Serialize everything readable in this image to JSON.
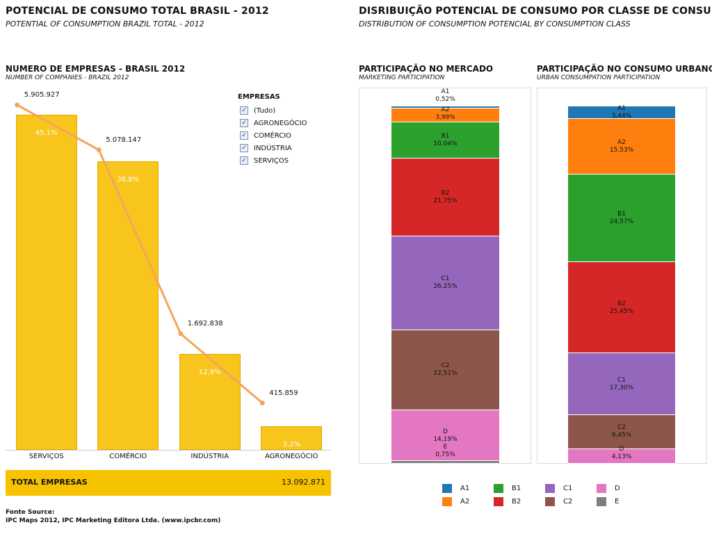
{
  "left_header": {
    "title": "POTENCIAL DE CONSUMO TOTAL BRASIL - 2012",
    "subtitle": "POTENTIAL OF CONSUMPTION BRAZIL TOTAL - 2012"
  },
  "right_header": {
    "title": "DISRIBUIÇÃO POTENCIAL DE CONSUMO POR CLASSE DE CONSUMO",
    "subtitle": "DISTRIBUTION OF CONSUMPTION POTENCIAL BY CONSUMPTION CLASS"
  },
  "filter": {
    "title": "EMPRESAS",
    "check_mark": "✓",
    "items": [
      "(Tudo)",
      "AGRONEGÓCIO",
      "COMÉRCIO",
      "INDÚSTRIA",
      "SERVIÇOS"
    ]
  },
  "total": {
    "label": "TOTAL EMPRESAS",
    "value": "13.092.871"
  },
  "footer": {
    "line1": "Fonte Source:",
    "line2": "IPC Maps 2012, IPC Marketing Editora Ltda. (www.ipcbr.com)"
  },
  "colors": {
    "bar": "#f8c51c",
    "line": "#f2a65a",
    "A1": "#1f77b4",
    "A2": "#ff7f0e",
    "B1": "#2ca02c",
    "B2": "#d62728",
    "C1": "#9467bd",
    "C2": "#8c564b",
    "D": "#e377c2",
    "E": "#7f7f7f"
  },
  "chart_data": [
    {
      "type": "bar",
      "title": "NUMERO  DE EMPRESAS - BRASIL 2012",
      "subtitle": "NUMBER OF COMPANIES - BRAZIL 2012",
      "categories": [
        "SERVIÇOS",
        "COMÉRCIO",
        "INDÚSTRIA",
        "AGRONEGÓCIO"
      ],
      "series": [
        {
          "values": [
            45.1,
            38.8,
            12.9,
            3.2
          ],
          "labels": [
            "45,1%",
            "38,8%",
            "12,9%",
            "3,2%"
          ]
        },
        {
          "type": "line",
          "values": [
            5905927,
            5078147,
            1692838,
            415859
          ],
          "labels": [
            "5.905.927",
            "5.078.147",
            "1.692.838",
            "415.859"
          ]
        }
      ],
      "ylim": [
        0,
        100
      ]
    },
    {
      "type": "bar",
      "stacked": true,
      "title": "PARTICIPAÇÃO NO MERCADO",
      "subtitle": "MARKETING PARTICIPATION",
      "segments": [
        {
          "class": "A1",
          "value": 0.52,
          "label": "0,52%"
        },
        {
          "class": "A2",
          "value": 3.99,
          "label": "3,99%"
        },
        {
          "class": "B1",
          "value": 10.04,
          "label": "10,04%"
        },
        {
          "class": "B2",
          "value": 21.75,
          "label": "21,75%"
        },
        {
          "class": "C1",
          "value": 26.25,
          "label": "26,25%"
        },
        {
          "class": "C2",
          "value": 22.51,
          "label": "22,51%"
        },
        {
          "class": "D",
          "value": 14.19,
          "label": "14,19%"
        },
        {
          "class": "E",
          "value": 0.75,
          "label": "0,75%"
        }
      ]
    },
    {
      "type": "bar",
      "stacked": true,
      "title": "PARTICIPAÇÃO NO CONSUMO URBANO",
      "subtitle": "URBAN CONSUMPATION PARTICIPATION",
      "segments": [
        {
          "class": "A1",
          "value": 3.44,
          "label": "3,44%"
        },
        {
          "class": "A2",
          "value": 15.53,
          "label": "15,53%"
        },
        {
          "class": "B1",
          "value": 24.57,
          "label": "24,57%"
        },
        {
          "class": "B2",
          "value": 25.45,
          "label": "25,45%"
        },
        {
          "class": "C1",
          "value": 17.3,
          "label": "17,30%"
        },
        {
          "class": "C2",
          "value": 9.45,
          "label": "9,45%"
        },
        {
          "class": "D",
          "value": 4.13,
          "label": "4,13%"
        }
      ]
    }
  ],
  "legend": [
    "A1",
    "B1",
    "C1",
    "D",
    "A2",
    "B2",
    "C2",
    "E"
  ]
}
